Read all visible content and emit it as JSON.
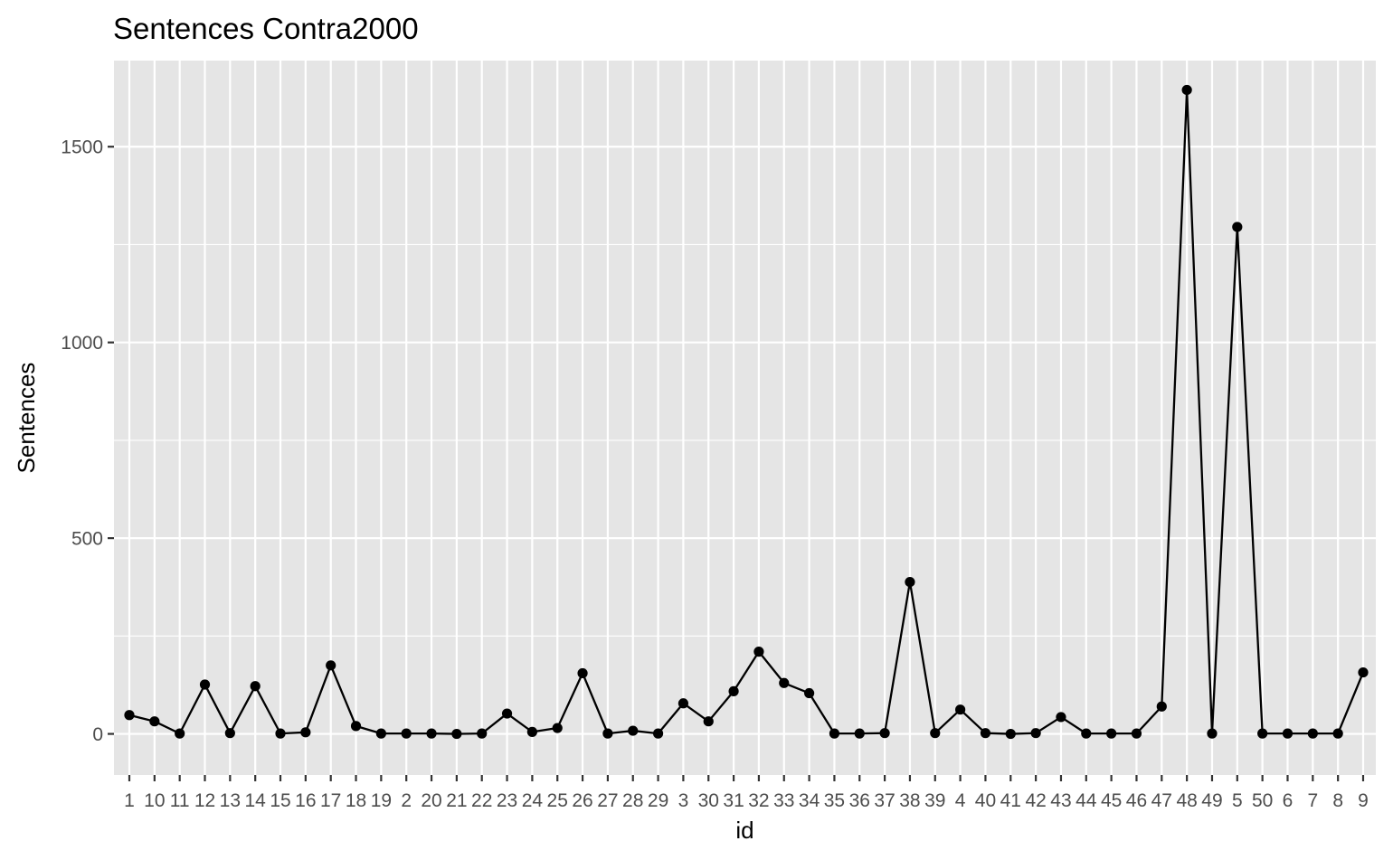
{
  "chart_data": {
    "type": "line",
    "title": "Sentences Contra2000",
    "xlabel": "id",
    "ylabel": "Sentences",
    "ylim": [
      -105,
      1720
    ],
    "yticks": [
      0,
      500,
      1000,
      1500
    ],
    "grid": true,
    "legend": "none",
    "categories": [
      "1",
      "10",
      "11",
      "12",
      "13",
      "14",
      "15",
      "16",
      "17",
      "18",
      "19",
      "2",
      "20",
      "21",
      "22",
      "23",
      "24",
      "25",
      "26",
      "27",
      "28",
      "29",
      "3",
      "30",
      "31",
      "32",
      "33",
      "34",
      "35",
      "36",
      "37",
      "38",
      "39",
      "4",
      "40",
      "41",
      "42",
      "43",
      "44",
      "45",
      "46",
      "47",
      "48",
      "49",
      "5",
      "50",
      "6",
      "7",
      "8",
      "9"
    ],
    "series": [
      {
        "values": [
          48,
          32,
          1,
          126,
          2,
          122,
          1,
          4,
          175,
          20,
          1,
          1,
          1,
          0,
          1,
          52,
          5,
          15,
          155,
          1,
          8,
          1,
          78,
          32,
          109,
          210,
          130,
          104,
          1,
          1,
          2,
          388,
          2,
          62,
          2,
          0,
          2,
          43,
          1,
          1,
          1,
          70,
          1645,
          1,
          1295,
          1,
          1,
          1,
          1,
          157
        ]
      }
    ],
    "colors": {
      "panel_background": "#e5e5e5",
      "grid_line": "#ffffff",
      "series_line": "#000000",
      "tick_text": "#4d4d4d",
      "tick_mark": "#333333"
    }
  }
}
